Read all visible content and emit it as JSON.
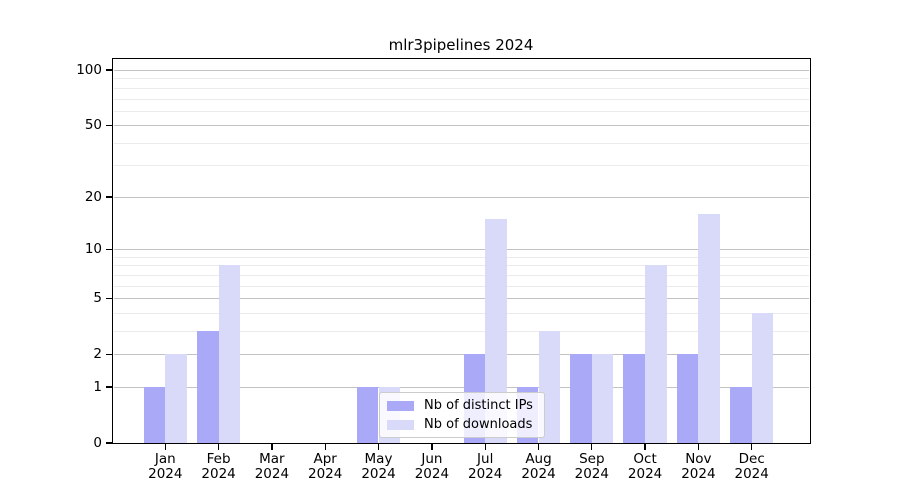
{
  "title": "mlr3pipelines 2024",
  "chart_data": {
    "type": "bar",
    "title": "mlr3pipelines 2024",
    "categories": [
      "Jan",
      "Feb",
      "Mar",
      "Apr",
      "May",
      "Jun",
      "Jul",
      "Aug",
      "Sep",
      "Oct",
      "Nov",
      "Dec"
    ],
    "category_year_line": "2024",
    "series": [
      {
        "name": "Nb of distinct IPs",
        "color": "#a9a9f7",
        "values": [
          1,
          3,
          0,
          0,
          1,
          0,
          2,
          1,
          2,
          2,
          2,
          1
        ]
      },
      {
        "name": "Nb of downloads",
        "color": "#d9d9f9",
        "values": [
          2,
          8,
          0,
          0,
          1,
          0,
          15,
          3,
          2,
          8,
          16,
          4
        ]
      }
    ],
    "y_axis": {
      "scale": "log1p",
      "ylim": [
        0,
        114.7
      ],
      "major_ticks": [
        0,
        1,
        2,
        5,
        10,
        20,
        50,
        100
      ],
      "minor_ticks": [
        3,
        4,
        6,
        7,
        8,
        9,
        30,
        40,
        60,
        70,
        80,
        90
      ]
    },
    "xlabel": "",
    "ylabel": "",
    "grid": true,
    "legend": {
      "position": "lower center",
      "labels": [
        "Nb of distinct IPs",
        "Nb of downloads"
      ]
    },
    "colors": {
      "major_grid": "#c2c2c2",
      "minor_grid": "#ebebeb",
      "spine": "#000000",
      "background": "#ffffff"
    }
  }
}
